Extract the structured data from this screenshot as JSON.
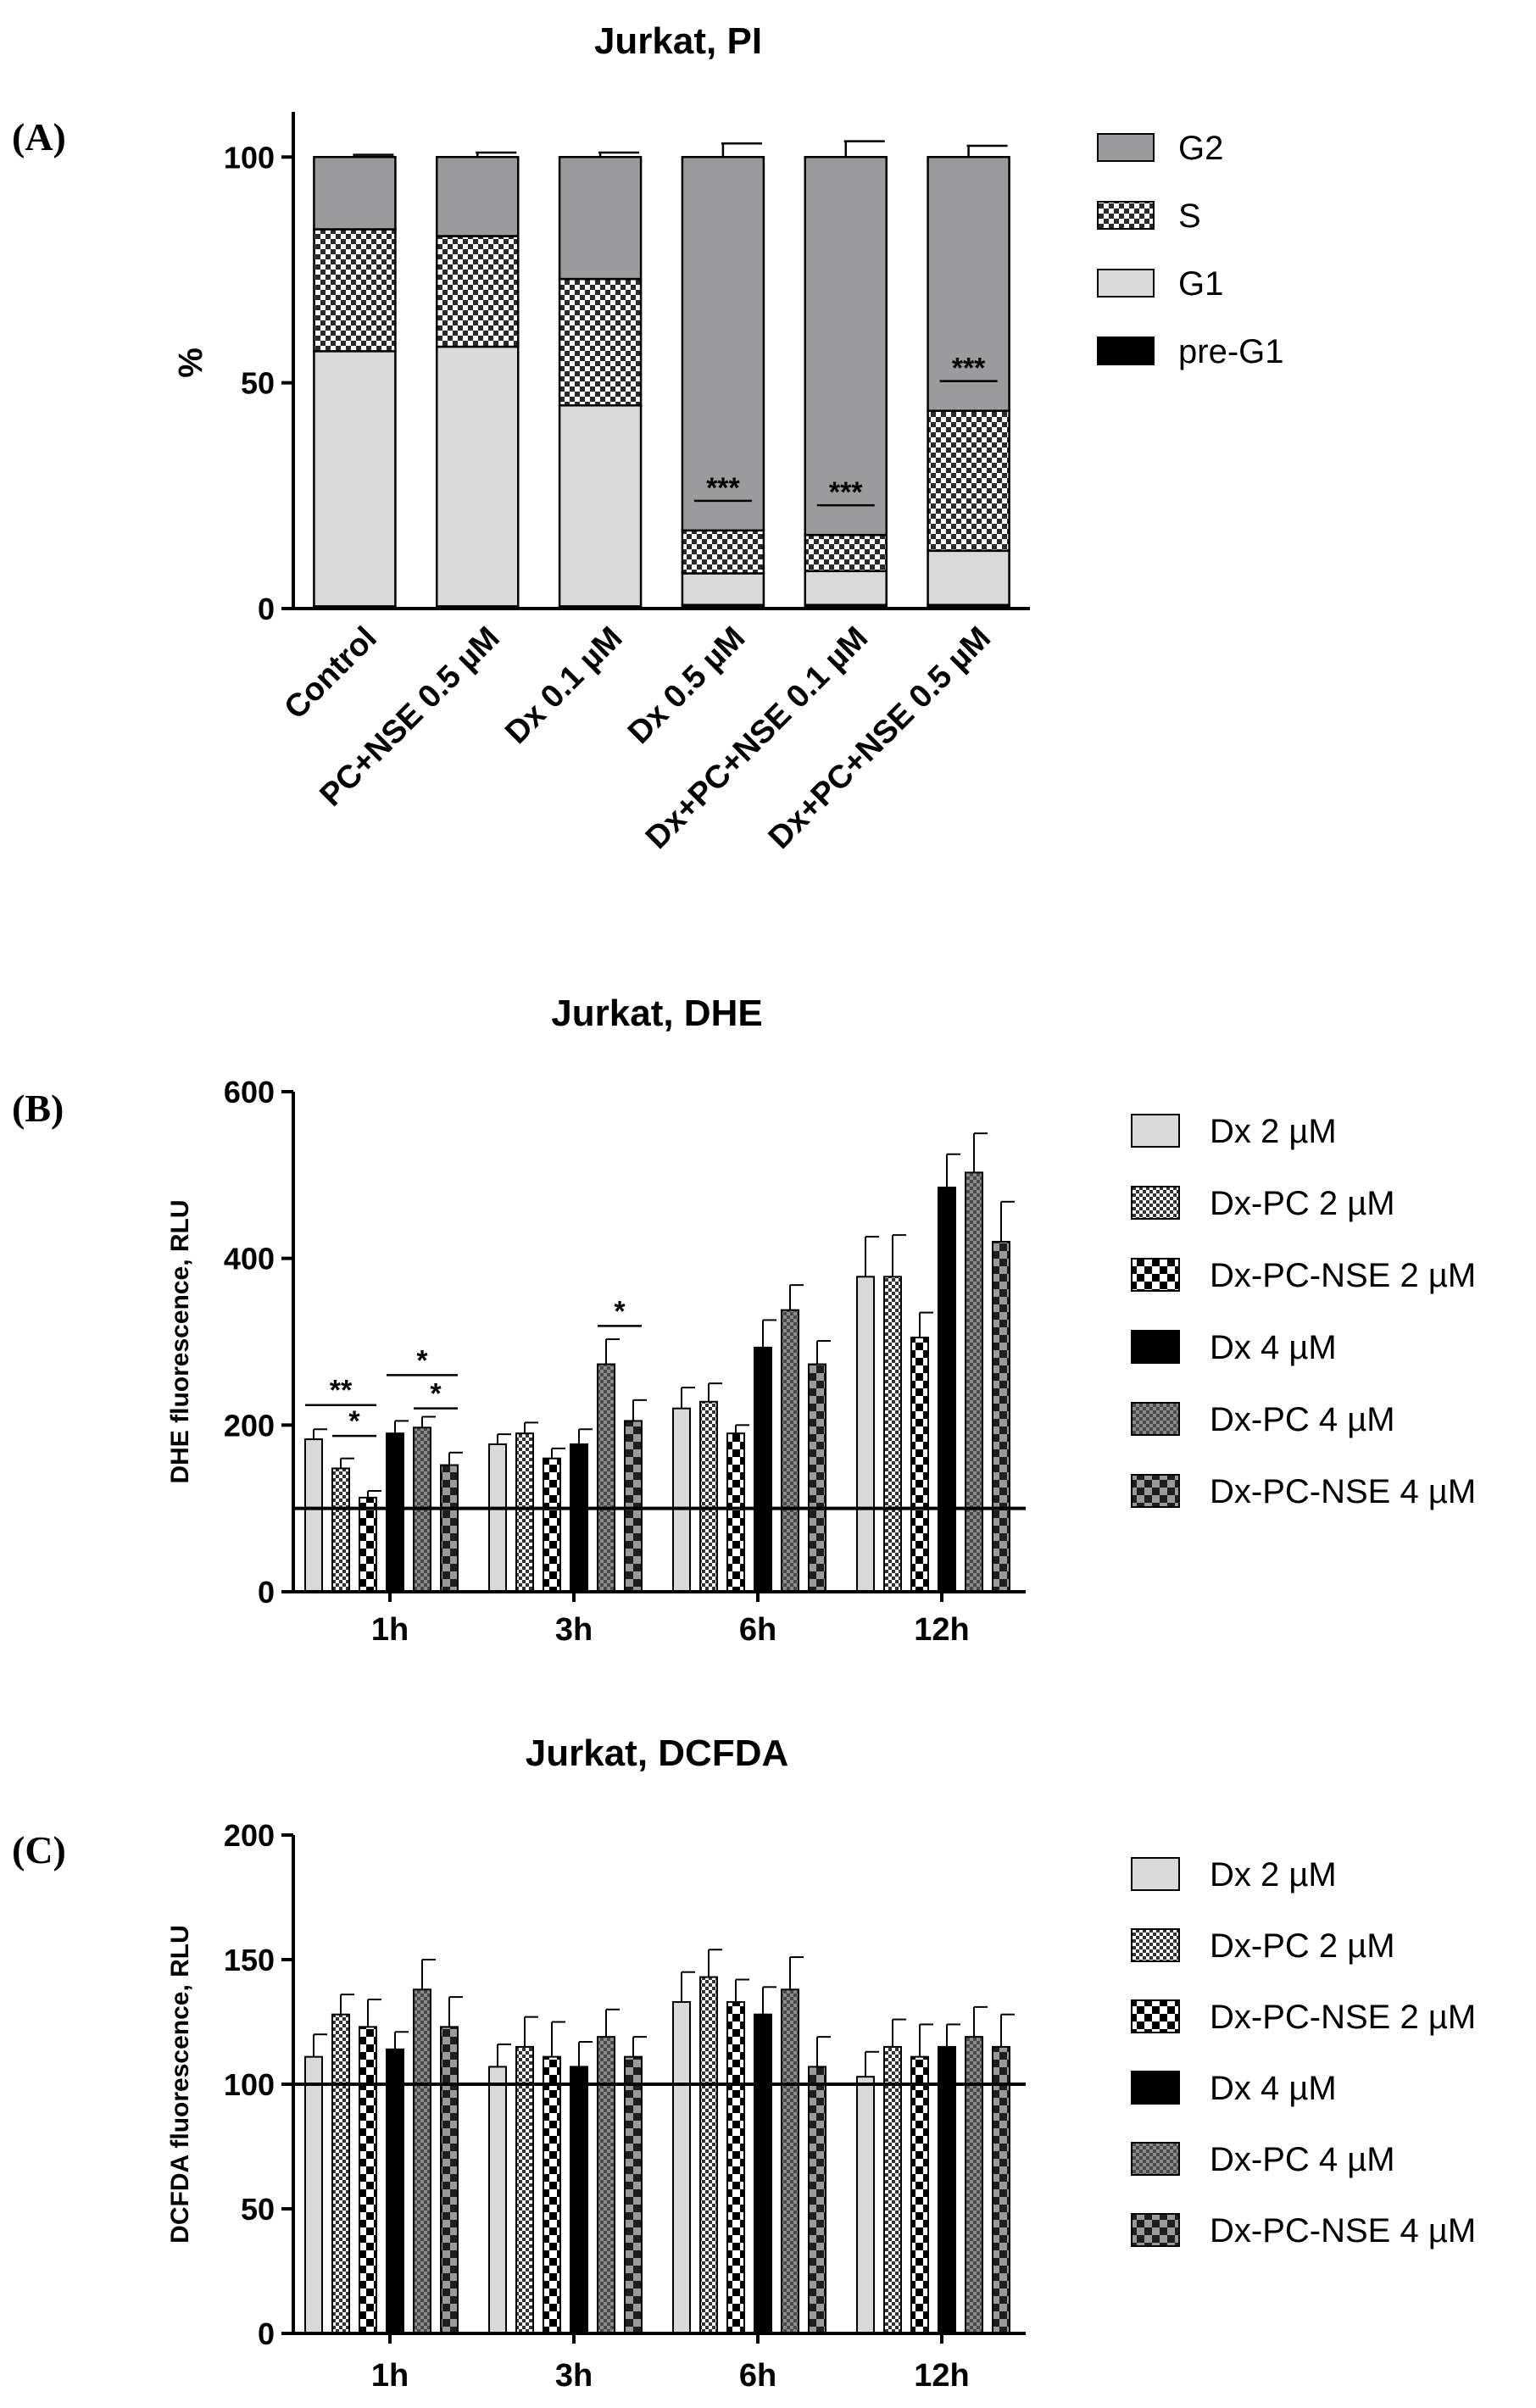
{
  "colors": {
    "G2": "#9b9b9e",
    "S": "#ffffff",
    "G1": "#d9d9d9",
    "pre-G1": "#000000",
    "Dx 2 µM": "#d9d9d9",
    "Dx 4 µM": "#000000",
    "Dx-PC 4 µM": "#8c8c8c"
  },
  "chart_data": [
    {
      "panel": "(A)",
      "type": "bar",
      "stacked": true,
      "title": "Jurkat, PI",
      "xlabel": "",
      "ylabel": "%",
      "ylim": [
        0,
        110
      ],
      "yticks": [
        0,
        50,
        100
      ],
      "categories": [
        "Control",
        "PC+NSE 0.5 µM",
        "Dx 0.1 µM",
        "Dx 0.5 µM",
        "Dx+PC+NSE 0.1 µM",
        "Dx+PC+NSE 0.5 µM"
      ],
      "series": [
        {
          "name": "pre-G1",
          "values": [
            0.5,
            0.5,
            0.5,
            0.8,
            0.8,
            0.8
          ],
          "errors": [
            0,
            0,
            0,
            0,
            0,
            0
          ]
        },
        {
          "name": "G1",
          "values": [
            56.5,
            57.5,
            44.5,
            7,
            7.5,
            12
          ],
          "errors": [
            2,
            1.5,
            1.5,
            1,
            1,
            1
          ]
        },
        {
          "name": "S",
          "values": [
            27,
            24.5,
            28,
            9.5,
            8,
            31
          ],
          "errors": [
            1,
            1,
            1,
            1,
            1,
            1
          ]
        },
        {
          "name": "G2",
          "values": [
            16,
            17.5,
            27,
            82.7,
            83.7,
            56.2
          ],
          "errors": [
            0.5,
            1,
            1,
            3,
            3.5,
            2.5
          ]
        }
      ],
      "legend": [
        "G2",
        "S",
        "G1",
        "pre-G1"
      ],
      "annotations": [
        {
          "category": "Dx 0.5 µM",
          "text": "***"
        },
        {
          "category": "Dx+PC+NSE 0.1 µM",
          "text": "***"
        },
        {
          "category": "Dx+PC+NSE 0.5 µM",
          "text": "***"
        }
      ]
    },
    {
      "panel": "(B)",
      "type": "bar",
      "title": "Jurkat, DHE",
      "xlabel": "",
      "ylabel": "DHE fluorescence, RLU",
      "ylim": [
        0,
        600
      ],
      "yticks": [
        0,
        200,
        400,
        600
      ],
      "reference_line": 100,
      "categories": [
        "1h",
        "3h",
        "6h",
        "12h"
      ],
      "series": [
        {
          "name": "Dx 2 µM",
          "values": [
            183,
            177,
            220,
            378
          ],
          "errors": [
            12,
            12,
            25,
            48
          ]
        },
        {
          "name": "Dx-PC 2 µM",
          "values": [
            148,
            190,
            228,
            378
          ],
          "errors": [
            12,
            13,
            22,
            50
          ]
        },
        {
          "name": "Dx-PC-NSE 2 µM",
          "values": [
            113,
            160,
            190,
            305
          ],
          "errors": [
            8,
            12,
            10,
            30
          ]
        },
        {
          "name": "Dx 4 µM",
          "values": [
            190,
            177,
            293,
            485
          ],
          "errors": [
            15,
            18,
            33,
            40
          ]
        },
        {
          "name": "Dx-PC 4 µM",
          "values": [
            197,
            273,
            338,
            503
          ],
          "errors": [
            13,
            30,
            30,
            47
          ]
        },
        {
          "name": "Dx-PC-NSE 4 µM",
          "values": [
            152,
            205,
            273,
            420
          ],
          "errors": [
            15,
            25,
            28,
            48
          ]
        }
      ],
      "annotations": [
        {
          "text": "**",
          "between": [
            "1h:Dx 2 µM",
            "1h:Dx-PC-NSE 2 µM"
          ]
        },
        {
          "text": "*",
          "between": [
            "1h:Dx-PC 2 µM",
            "1h:Dx-PC-NSE 2 µM"
          ]
        },
        {
          "text": "*",
          "between": [
            "1h:Dx 4 µM",
            "1h:Dx-PC-NSE 4 µM"
          ]
        },
        {
          "text": "*",
          "between": [
            "1h:Dx-PC 4 µM",
            "1h:Dx-PC-NSE 4 µM"
          ]
        },
        {
          "text": "*",
          "between": [
            "3h:Dx-PC 4 µM",
            "3h:Dx-PC-NSE 4 µM"
          ]
        }
      ]
    },
    {
      "panel": "(C)",
      "type": "bar",
      "title": "Jurkat, DCFDA",
      "xlabel": "",
      "ylabel": "DCFDA fluorescence, RLU",
      "ylim": [
        0,
        200
      ],
      "yticks": [
        0,
        50,
        100,
        150,
        200
      ],
      "reference_line": 100,
      "categories": [
        "1h",
        "3h",
        "6h",
        "12h"
      ],
      "series": [
        {
          "name": "Dx 2 µM",
          "values": [
            111,
            107,
            133,
            103
          ],
          "errors": [
            9,
            9,
            12,
            10
          ]
        },
        {
          "name": "Dx-PC 2 µM",
          "values": [
            128,
            115,
            143,
            115
          ],
          "errors": [
            8,
            12,
            11,
            11
          ]
        },
        {
          "name": "Dx-PC-NSE 2 µM",
          "values": [
            123,
            111,
            133,
            111
          ],
          "errors": [
            11,
            14,
            9,
            13
          ]
        },
        {
          "name": "Dx 4 µM",
          "values": [
            114,
            107,
            128,
            115
          ],
          "errors": [
            7,
            10,
            11,
            9
          ]
        },
        {
          "name": "Dx-PC 4 µM",
          "values": [
            138,
            119,
            138,
            119
          ],
          "errors": [
            12,
            11,
            13,
            12
          ]
        },
        {
          "name": "Dx-PC-NSE 4 µM",
          "values": [
            123,
            111,
            107,
            115
          ],
          "errors": [
            12,
            8,
            12,
            13
          ]
        }
      ]
    }
  ]
}
